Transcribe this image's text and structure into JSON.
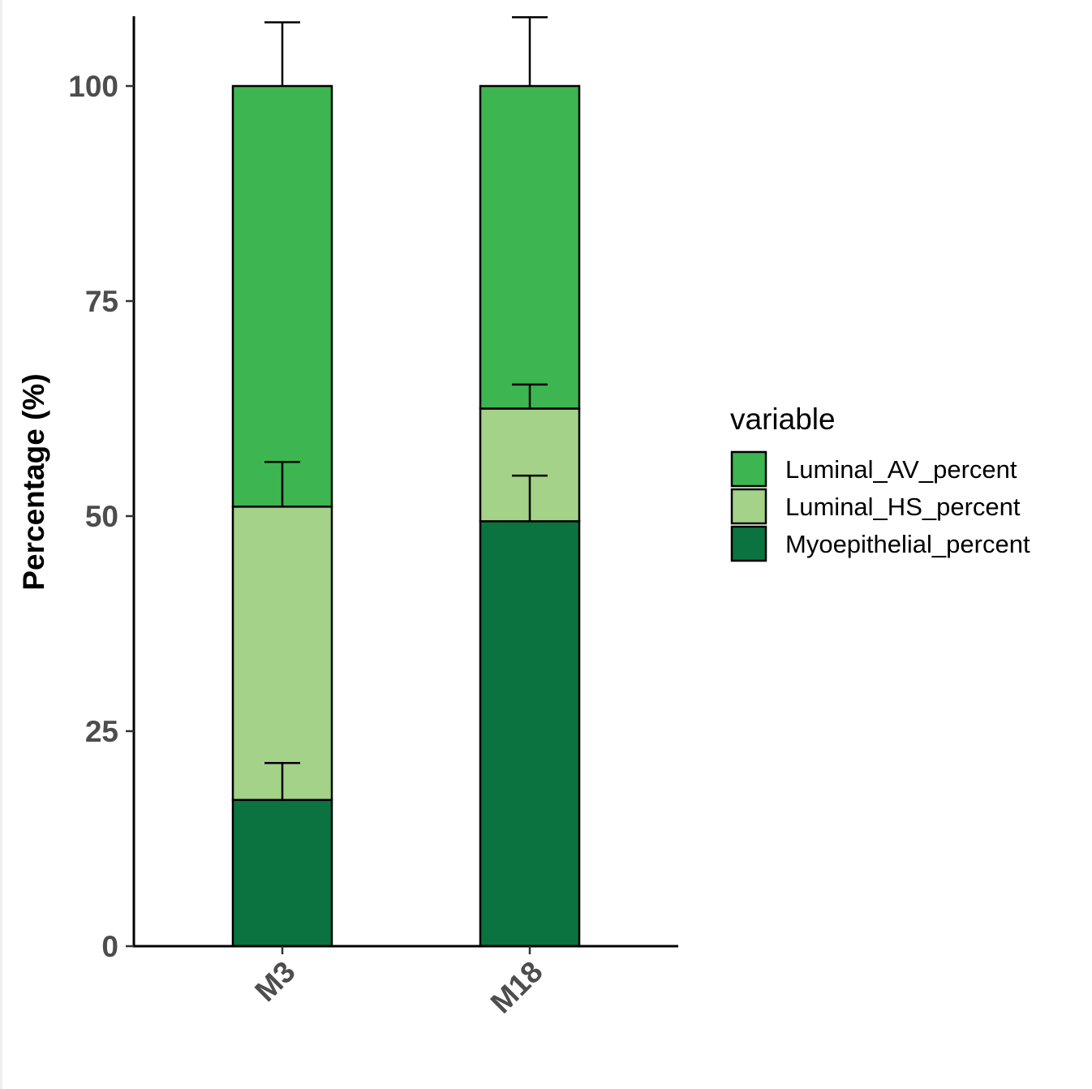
{
  "chart_data": {
    "type": "bar",
    "stacked": true,
    "categories": [
      "M3",
      "M18"
    ],
    "ylabel": "Percentage (%)",
    "xlabel": "",
    "ylim": [
      0,
      107
    ],
    "yticks": [
      0,
      25,
      50,
      75,
      100
    ],
    "grid": false,
    "legend": {
      "title": "variable",
      "placement": "right"
    },
    "series": [
      {
        "name": "Myoepithelial_percent",
        "color": "#0b7340",
        "values": [
          17.0,
          49.4
        ],
        "error": [
          4.3,
          5.3
        ]
      },
      {
        "name": "Luminal_HS_percent",
        "color": "#a3d288",
        "values": [
          34.1,
          13.1
        ],
        "error": [
          5.2,
          2.8
        ]
      },
      {
        "name": "Luminal_AV_percent",
        "color": "#3db550",
        "values": [
          48.9,
          37.5
        ],
        "error": [
          7.4,
          8.0
        ]
      }
    ],
    "legend_order": [
      "Luminal_AV_percent",
      "Luminal_HS_percent",
      "Myoepithelial_percent"
    ]
  }
}
